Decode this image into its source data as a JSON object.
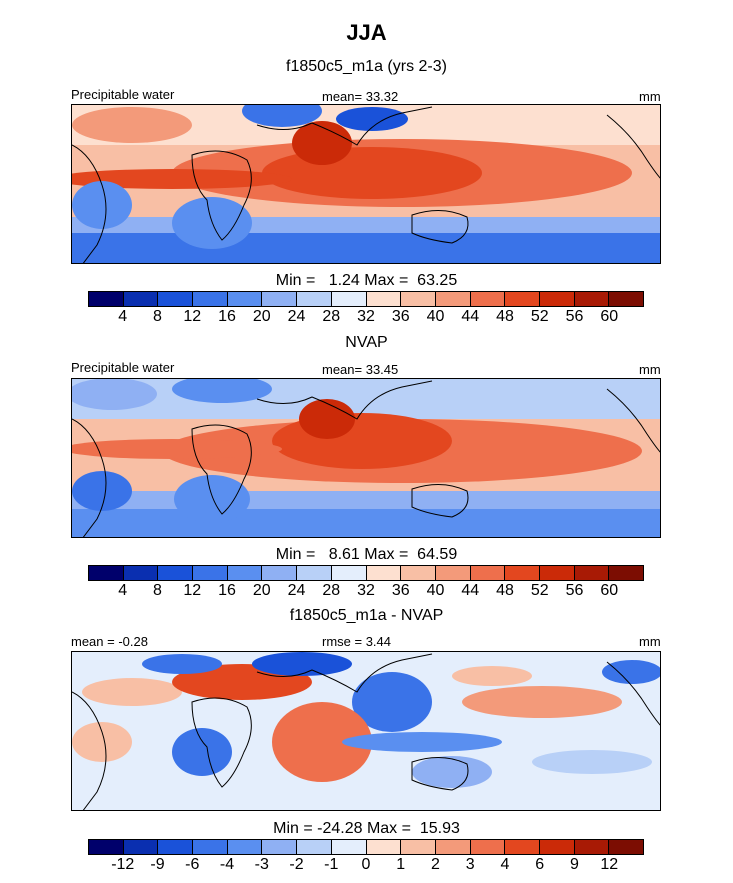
{
  "figure": {
    "title": "JJA"
  },
  "chart_data": [
    {
      "type": "heatmap",
      "title": "f1850c5_m1a (yrs 2-3)",
      "left_label": "Precipitable water",
      "center_label": "mean=  33.32",
      "right_label": "mm",
      "stats": "Min =   1.24 Max =  63.25",
      "colorbar": {
        "ticks": [
          "4",
          "8",
          "12",
          "16",
          "20",
          "24",
          "28",
          "32",
          "36",
          "40",
          "44",
          "48",
          "52",
          "56",
          "60"
        ],
        "colors": [
          "#00006b",
          "#0a2fb0",
          "#1a52d9",
          "#3a73e8",
          "#5a8ff0",
          "#8fb0f3",
          "#b8d0f7",
          "#e4eefc",
          "#fde0d0",
          "#f8bfa5",
          "#f39a7a",
          "#ee6f4c",
          "#e3471f",
          "#cb2a08",
          "#a81a05",
          "#7c0d02"
        ]
      }
    },
    {
      "type": "heatmap",
      "title": "NVAP",
      "left_label": "Precipitable water",
      "center_label": "mean=  33.45",
      "right_label": "mm",
      "stats": "Min =   8.61 Max =  64.59",
      "colorbar": {
        "ticks": [
          "4",
          "8",
          "12",
          "16",
          "20",
          "24",
          "28",
          "32",
          "36",
          "40",
          "44",
          "48",
          "52",
          "56",
          "60"
        ],
        "colors": [
          "#00006b",
          "#0a2fb0",
          "#1a52d9",
          "#3a73e8",
          "#5a8ff0",
          "#8fb0f3",
          "#b8d0f7",
          "#e4eefc",
          "#fde0d0",
          "#f8bfa5",
          "#f39a7a",
          "#ee6f4c",
          "#e3471f",
          "#cb2a08",
          "#a81a05",
          "#7c0d02"
        ]
      }
    },
    {
      "type": "heatmap",
      "title": "f1850c5_m1a - NVAP",
      "left_label": "mean =  -0.28",
      "center_label": "rmse =   3.44",
      "right_label": "mm",
      "stats": "Min = -24.28 Max =  15.93",
      "colorbar": {
        "ticks": [
          "-12",
          "-9",
          "-6",
          "-4",
          "-3",
          "-2",
          "-1",
          "0",
          "1",
          "2",
          "3",
          "4",
          "6",
          "9",
          "12"
        ],
        "colors": [
          "#00006b",
          "#0a2fb0",
          "#1a52d9",
          "#3a73e8",
          "#5a8ff0",
          "#8fb0f3",
          "#b8d0f7",
          "#e4eefc",
          "#fde0d0",
          "#f8bfa5",
          "#f39a7a",
          "#ee6f4c",
          "#e3471f",
          "#cb2a08",
          "#a81a05",
          "#7c0d02"
        ]
      }
    }
  ]
}
